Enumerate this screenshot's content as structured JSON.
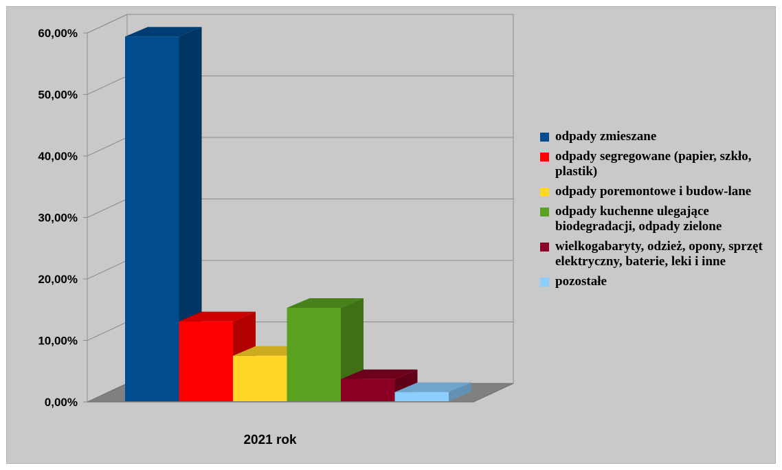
{
  "chart_data": {
    "type": "bar",
    "categories": [
      "2021 rok"
    ],
    "series": [
      {
        "name": "odpady zmieszane",
        "values": [
          59.3
        ],
        "color": "#004c8f"
      },
      {
        "name": "odpady segregowane (papier, szkło, plastik)",
        "values": [
          13.0
        ],
        "color": "#ff0000"
      },
      {
        "name": "odpady poremontowe i budow-lane",
        "values": [
          7.4
        ],
        "color": "#ffd726"
      },
      {
        "name": "odpady kuchenne ulegające biodegradacji, odpady zielone",
        "values": [
          15.2
        ],
        "color": "#58a21f"
      },
      {
        "name": "wielkogabaryty, odzież, opony, sprzęt elektryczny, baterie, leki i inne",
        "values": [
          3.6
        ],
        "color": "#8b0024"
      },
      {
        "name": "pozostałe",
        "values": [
          1.5
        ],
        "color": "#8ccfff"
      }
    ],
    "ylim": [
      0,
      60
    ],
    "yticks": [
      "0,00%",
      "10,00%",
      "20,00%",
      "30,00%",
      "40,00%",
      "50,00%",
      "60,00%"
    ],
    "grid": true,
    "three_d": true,
    "legend_position": "right",
    "title": "",
    "xlabel": "",
    "ylabel": ""
  }
}
